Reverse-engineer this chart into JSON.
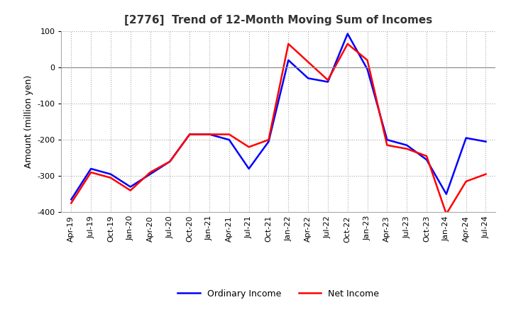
{
  "title": "[2776]  Trend of 12-Month Moving Sum of Incomes",
  "ylabel": "Amount (million yen)",
  "ylim": [
    -400,
    100
  ],
  "yticks": [
    -400,
    -300,
    -200,
    -100,
    0,
    100
  ],
  "legend": [
    "Ordinary Income",
    "Net Income"
  ],
  "colors": [
    "blue",
    "red"
  ],
  "x_labels": [
    "Apr-19",
    "Jul-19",
    "Oct-19",
    "Jan-20",
    "Apr-20",
    "Jul-20",
    "Oct-20",
    "Jan-21",
    "Apr-21",
    "Jul-21",
    "Oct-21",
    "Jan-22",
    "Apr-22",
    "Jul-22",
    "Oct-22",
    "Jan-23",
    "Apr-23",
    "Jul-23",
    "Oct-23",
    "Jan-24",
    "Apr-24",
    "Jul-24"
  ],
  "ordinary_income": [
    -365,
    -280,
    -295,
    -330,
    -295,
    -260,
    -185,
    -185,
    -200,
    -280,
    -205,
    20,
    -30,
    -40,
    93,
    -5,
    -200,
    -215,
    -255,
    -350,
    -195,
    -205
  ],
  "net_income": [
    -375,
    -290,
    -305,
    -340,
    -290,
    -260,
    -185,
    -185,
    -185,
    -220,
    -200,
    65,
    15,
    -35,
    65,
    20,
    -215,
    -225,
    -245,
    -405,
    -315,
    -295
  ]
}
